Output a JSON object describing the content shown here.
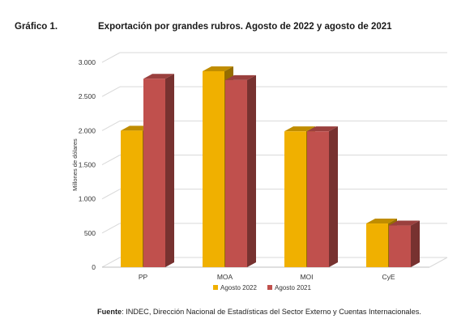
{
  "figure": {
    "label": "Gráfico 1.",
    "title": "Exportación por grandes rubros. Agosto de 2022 y agosto de 2021"
  },
  "chart_data": {
    "type": "bar",
    "categories": [
      "PP",
      "MOA",
      "MOI",
      "CyE"
    ],
    "series": [
      {
        "name": "Agosto 2022",
        "values": [
          2000,
          2870,
          1990,
          640
        ],
        "color": "#f0b000"
      },
      {
        "name": "Agosto 2021",
        "values": [
          2760,
          2740,
          1990,
          610
        ],
        "color": "#c0504d"
      }
    ],
    "ylabel": "Millones de dólares",
    "ylim": [
      0,
      3000
    ],
    "yticks": [
      0,
      500,
      1000,
      1500,
      2000,
      2500,
      3000
    ],
    "ytick_labels": [
      "0",
      "500",
      "1.000",
      "1.500",
      "2.000",
      "2.500",
      "3.000"
    ],
    "grid": true,
    "legend": "bottom",
    "style": "3d-column"
  },
  "source": {
    "label": "Fuente",
    "text": ": INDEC, Dirección Nacional de Estadísticas del Sector Externo y Cuentas Internacionales."
  }
}
